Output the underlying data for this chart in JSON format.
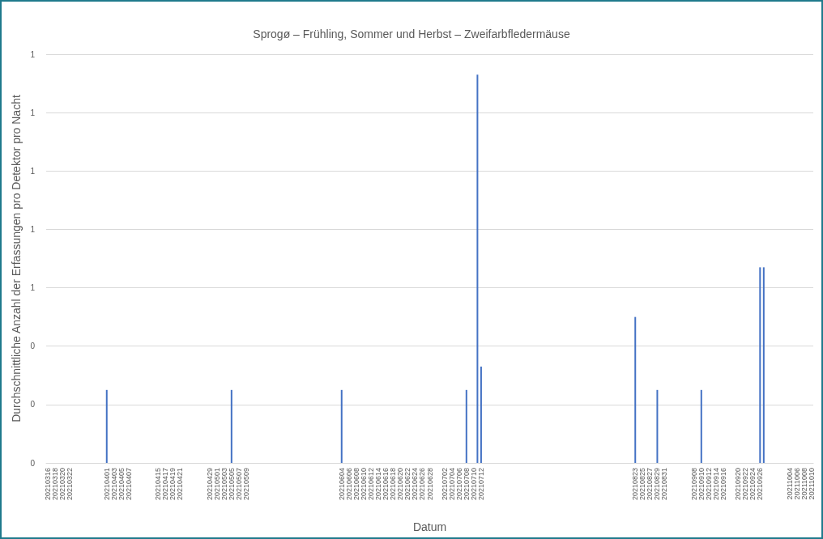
{
  "chart_data": {
    "type": "bar",
    "title": "Sprogø – Frühling, Sommer und Herbst – Zweifarbfledermäuse",
    "xlabel": "Datum",
    "ylabel": "Durchschnittliche Anzahl der Erfassungen pro Detektor pro Nacht",
    "color": "#4472c4",
    "grid": "y",
    "categories": [
      "20210316",
      null,
      "20210318",
      null,
      "20210320",
      null,
      "20210322",
      null,
      null,
      null,
      null,
      null,
      null,
      null,
      null,
      null,
      "20210401",
      null,
      "20210403",
      null,
      "20210405",
      null,
      "20210407",
      null,
      null,
      null,
      null,
      null,
      null,
      null,
      "20210415",
      null,
      "20210417",
      null,
      "20210419",
      null,
      "20210421",
      null,
      null,
      null,
      null,
      null,
      null,
      null,
      "20210429",
      null,
      "20210501",
      null,
      "20210503",
      null,
      "20210505",
      null,
      "20210507",
      null,
      "20210509",
      null,
      null,
      null,
      null,
      null,
      null,
      null,
      null,
      null,
      null,
      null,
      null,
      null,
      null,
      null,
      null,
      null,
      null,
      null,
      null,
      null,
      null,
      null,
      null,
      null,
      "20210604",
      null,
      "20210606",
      null,
      "20210608",
      null,
      "20210610",
      null,
      "20210612",
      null,
      "20210614",
      null,
      "20210616",
      null,
      "20210618",
      null,
      "20210620",
      null,
      "20210622",
      null,
      "20210624",
      null,
      "20210626",
      null,
      "20210628",
      null,
      null,
      null,
      "20210702",
      null,
      "20210704",
      null,
      "20210706",
      null,
      "20210708",
      null,
      "20210710",
      null,
      "20210712",
      null,
      null,
      null,
      null,
      null,
      null,
      null,
      null,
      null,
      null,
      null,
      null,
      null,
      null,
      null,
      null,
      null,
      null,
      null,
      null,
      null,
      null,
      null,
      null,
      null,
      null,
      null,
      null,
      null,
      null,
      null,
      null,
      null,
      null,
      null,
      null,
      null,
      null,
      null,
      null,
      null,
      "20210823",
      null,
      "20210825",
      null,
      "20210827",
      null,
      "20210829",
      null,
      "20210831",
      null,
      null,
      null,
      null,
      null,
      null,
      null,
      "20210908",
      null,
      "20210910",
      null,
      "20210912",
      null,
      "20210914",
      null,
      "20210916",
      null,
      null,
      null,
      "20210920",
      null,
      "20210922",
      null,
      "20210924",
      null,
      "20210926",
      null,
      null,
      null,
      null,
      null,
      null,
      null,
      "20211004",
      null,
      "20211006",
      null,
      "20211008",
      null,
      "20211010"
    ],
    "values": [
      null,
      null,
      null,
      null,
      null,
      null,
      null,
      null,
      null,
      null,
      null,
      null,
      null,
      null,
      null,
      null,
      0.25,
      null,
      null,
      null,
      null,
      null,
      null,
      null,
      null,
      null,
      null,
      null,
      null,
      null,
      null,
      null,
      null,
      null,
      null,
      null,
      null,
      null,
      null,
      null,
      null,
      null,
      null,
      null,
      null,
      null,
      null,
      null,
      null,
      null,
      0.25,
      null,
      null,
      null,
      null,
      null,
      null,
      null,
      null,
      null,
      null,
      null,
      null,
      null,
      null,
      null,
      null,
      null,
      null,
      null,
      null,
      null,
      null,
      null,
      null,
      null,
      null,
      null,
      null,
      null,
      0.25,
      null,
      null,
      null,
      null,
      null,
      null,
      null,
      null,
      null,
      null,
      null,
      null,
      null,
      null,
      null,
      null,
      null,
      null,
      null,
      null,
      null,
      null,
      null,
      null,
      null,
      null,
      null,
      null,
      null,
      null,
      null,
      null,
      null,
      0.25,
      null,
      null,
      1.33,
      0.33,
      null,
      null,
      null,
      null,
      null,
      null,
      null,
      null,
      null,
      null,
      null,
      null,
      null,
      null,
      null,
      null,
      null,
      null,
      null,
      null,
      null,
      null,
      null,
      null,
      null,
      null,
      null,
      null,
      null,
      null,
      null,
      null,
      null,
      null,
      null,
      null,
      null,
      null,
      null,
      null,
      null,
      0.5,
      null,
      null,
      null,
      null,
      null,
      0.25,
      null,
      null,
      null,
      null,
      null,
      null,
      null,
      null,
      null,
      null,
      null,
      0.25,
      null,
      null,
      null,
      null,
      null,
      null,
      null,
      null,
      null,
      null,
      null,
      null,
      null,
      null,
      null,
      0.67,
      0.67,
      null,
      null,
      null,
      null,
      null,
      null,
      null,
      null,
      null,
      null,
      null,
      null,
      null
    ],
    "ylim": [
      0,
      1.4
    ],
    "yticks": [
      {
        "value": 0,
        "label": "0"
      },
      {
        "value": 0.2,
        "label": "0"
      },
      {
        "value": 0.4,
        "label": "0"
      },
      {
        "value": 0.6,
        "label": "1"
      },
      {
        "value": 0.8,
        "label": "1"
      },
      {
        "value": 1,
        "label": "1"
      },
      {
        "value": 1.2,
        "label": "1"
      },
      {
        "value": 1.4,
        "label": "1"
      }
    ]
  }
}
